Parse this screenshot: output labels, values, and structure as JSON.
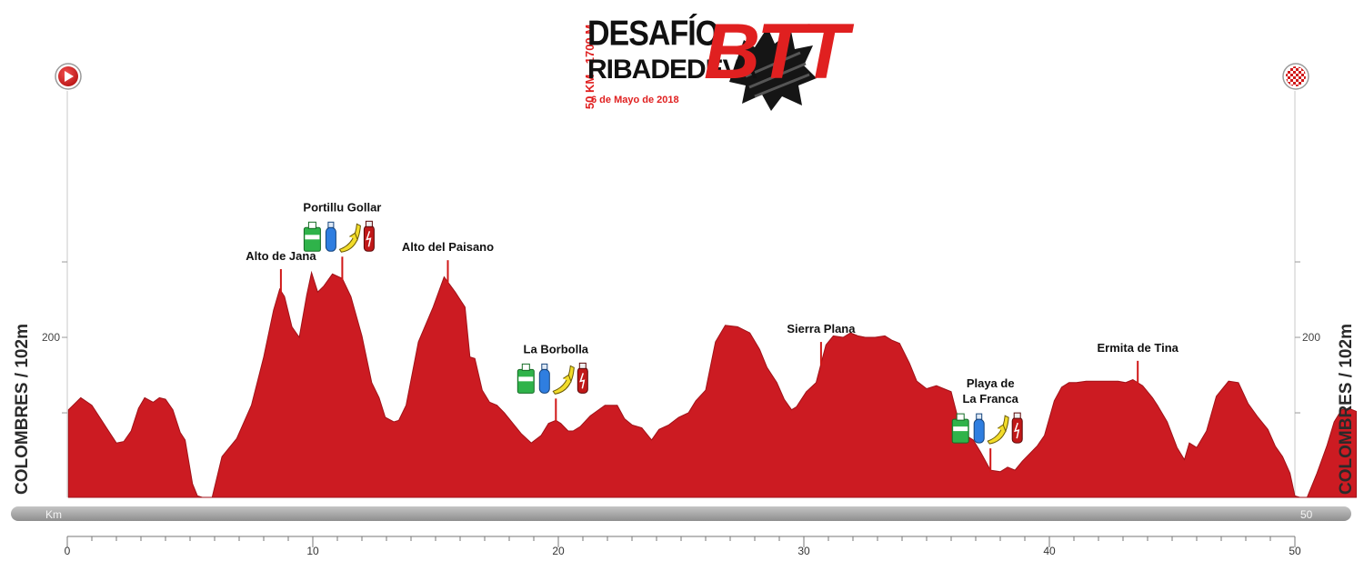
{
  "start_location": "COLOMBRES / 102m",
  "finish_location": "COLOMBRES / 102m",
  "logo": {
    "vertical_text": "50 KM - 1700 M",
    "title_line1": "DESAFÍO",
    "title_line2": "RIBADEDEVA",
    "acronym": "BTT",
    "date": "6 de Mayo de 2018"
  },
  "icons": {
    "start": "play-start-icon",
    "finish": "checkered-flag-icon",
    "refreshment": [
      "isotonic-drink-icon",
      "water-bottle-icon",
      "banana-icon",
      "energy-drink-icon"
    ]
  },
  "colors": {
    "profile_fill": "#cc1b22",
    "profile_stroke": "#a01218",
    "marker_line": "#d01818",
    "km_bar": "#a9a9a9"
  },
  "chart_data": {
    "type": "area",
    "title": "",
    "xlabel": "",
    "ylabel": "",
    "xlim": [
      0,
      50
    ],
    "x_ticks": [
      0,
      10,
      20,
      30,
      40,
      50
    ],
    "y_ticks_labeled": [
      200
    ],
    "y_ticks_unlabeled": [
      150,
      250
    ],
    "km_bar": {
      "left_label": "Km",
      "right_label": "50"
    },
    "series": [
      {
        "points": [
          [
            0.05,
            152
          ],
          [
            0.55,
            160
          ],
          [
            1.0,
            155
          ],
          [
            1.4,
            145
          ],
          [
            1.6,
            140
          ],
          [
            2.0,
            130
          ],
          [
            2.3,
            131
          ],
          [
            2.6,
            138
          ],
          [
            2.9,
            153
          ],
          [
            3.15,
            160
          ],
          [
            3.5,
            157
          ],
          [
            3.75,
            160
          ],
          [
            4.0,
            159
          ],
          [
            4.3,
            152
          ],
          [
            4.6,
            137
          ],
          [
            4.8,
            132
          ],
          [
            5.1,
            103
          ],
          [
            5.3,
            95
          ],
          [
            5.5,
            94
          ],
          [
            5.9,
            94
          ],
          [
            6.3,
            121
          ],
          [
            6.9,
            133
          ],
          [
            7.5,
            155
          ],
          [
            8.0,
            187
          ],
          [
            8.4,
            218
          ],
          [
            8.65,
            232
          ],
          [
            8.85,
            227
          ],
          [
            9.15,
            207
          ],
          [
            9.45,
            200
          ],
          [
            9.75,
            228
          ],
          [
            9.95,
            243
          ],
          [
            10.2,
            230
          ],
          [
            10.45,
            234
          ],
          [
            10.8,
            242
          ],
          [
            11.2,
            239
          ],
          [
            11.55,
            227
          ],
          [
            12.0,
            201
          ],
          [
            12.4,
            170
          ],
          [
            12.7,
            160
          ],
          [
            12.95,
            147
          ],
          [
            13.3,
            144
          ],
          [
            13.5,
            145
          ],
          [
            13.8,
            155
          ],
          [
            14.3,
            197
          ],
          [
            14.9,
            220
          ],
          [
            15.35,
            240
          ],
          [
            15.8,
            230
          ],
          [
            16.2,
            220
          ],
          [
            16.4,
            187
          ],
          [
            16.6,
            186
          ],
          [
            16.9,
            165
          ],
          [
            17.2,
            157
          ],
          [
            17.5,
            155
          ],
          [
            17.8,
            150
          ],
          [
            18.2,
            142
          ],
          [
            18.5,
            136
          ],
          [
            18.9,
            130
          ],
          [
            19.3,
            135
          ],
          [
            19.6,
            143
          ],
          [
            19.9,
            145
          ],
          [
            20.1,
            143
          ],
          [
            20.4,
            138
          ],
          [
            20.6,
            138
          ],
          [
            20.9,
            141
          ],
          [
            21.3,
            148
          ],
          [
            21.9,
            155
          ],
          [
            22.4,
            155
          ],
          [
            22.7,
            146
          ],
          [
            23.0,
            142
          ],
          [
            23.4,
            140
          ],
          [
            23.8,
            132
          ],
          [
            24.1,
            139
          ],
          [
            24.5,
            142
          ],
          [
            24.9,
            147
          ],
          [
            25.3,
            150
          ],
          [
            25.6,
            158
          ],
          [
            26.0,
            165
          ],
          [
            26.4,
            197
          ],
          [
            26.8,
            208
          ],
          [
            27.3,
            207
          ],
          [
            27.8,
            203
          ],
          [
            28.2,
            192
          ],
          [
            28.5,
            180
          ],
          [
            28.9,
            170
          ],
          [
            29.2,
            159
          ],
          [
            29.5,
            152
          ],
          [
            29.7,
            154
          ],
          [
            30.1,
            164
          ],
          [
            30.5,
            170
          ],
          [
            30.9,
            195
          ],
          [
            31.2,
            201
          ],
          [
            31.6,
            200
          ],
          [
            31.9,
            203
          ],
          [
            32.2,
            201
          ],
          [
            32.5,
            200
          ],
          [
            32.9,
            200
          ],
          [
            33.3,
            201
          ],
          [
            33.6,
            198
          ],
          [
            33.9,
            196
          ],
          [
            34.3,
            183
          ],
          [
            34.6,
            171
          ],
          [
            35.0,
            166
          ],
          [
            35.4,
            168
          ],
          [
            35.7,
            166
          ],
          [
            36.0,
            164
          ],
          [
            36.3,
            145
          ],
          [
            36.6,
            135
          ],
          [
            36.9,
            132
          ],
          [
            37.2,
            124
          ],
          [
            37.6,
            112
          ],
          [
            38.0,
            111
          ],
          [
            38.3,
            114
          ],
          [
            38.6,
            112
          ],
          [
            38.9,
            118
          ],
          [
            39.5,
            128
          ],
          [
            39.8,
            135
          ],
          [
            40.2,
            158
          ],
          [
            40.5,
            167
          ],
          [
            40.8,
            170
          ],
          [
            41.1,
            170
          ],
          [
            41.5,
            171
          ],
          [
            41.9,
            171
          ],
          [
            42.3,
            171
          ],
          [
            42.8,
            171
          ],
          [
            43.1,
            170
          ],
          [
            43.4,
            172
          ],
          [
            43.8,
            168
          ],
          [
            44.2,
            160
          ],
          [
            44.4,
            155
          ],
          [
            44.8,
            144
          ],
          [
            45.2,
            127
          ],
          [
            45.5,
            119
          ],
          [
            45.7,
            130
          ],
          [
            46.0,
            127
          ],
          [
            46.4,
            138
          ],
          [
            46.8,
            161
          ],
          [
            47.3,
            171
          ],
          [
            47.7,
            170
          ],
          [
            48.1,
            156
          ],
          [
            48.5,
            147
          ],
          [
            48.9,
            139
          ],
          [
            49.2,
            128
          ],
          [
            49.5,
            121
          ],
          [
            49.8,
            110
          ],
          [
            50.0,
            95
          ],
          [
            50.2,
            94
          ],
          [
            50.5,
            94
          ],
          [
            50.9,
            110
          ],
          [
            51.3,
            128
          ],
          [
            51.6,
            144
          ],
          [
            51.9,
            152
          ],
          [
            52.2,
            153
          ],
          [
            52.5,
            151
          ]
        ]
      }
    ],
    "annotations": [
      {
        "label": "Alto de Jana",
        "x": 8.7,
        "refreshment": false
      },
      {
        "label": "Portillu Gollar",
        "x": 11.2,
        "refreshment": true
      },
      {
        "label": "Alto del Paisano",
        "x": 15.5,
        "refreshment": false
      },
      {
        "label": "La Borbolla",
        "x": 19.9,
        "refreshment": true
      },
      {
        "label": "Sierra Plana",
        "x": 30.7,
        "refreshment": false
      },
      {
        "label": "Playa de\nLa Franca",
        "x": 37.6,
        "refreshment": true
      },
      {
        "label": "Ermita de Tina",
        "x": 43.6,
        "refreshment": false
      }
    ]
  }
}
